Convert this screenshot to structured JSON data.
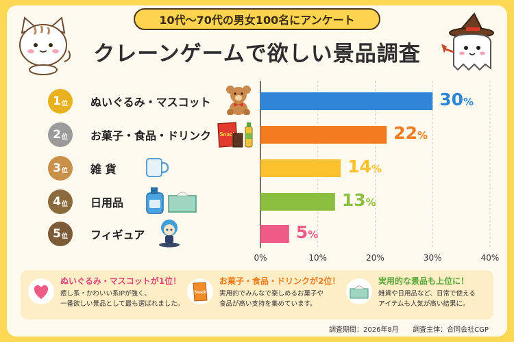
{
  "header": {
    "subtitle": "10代〜70代の男女100名にアンケート",
    "title": "クレーンゲームで欲しい景品調査"
  },
  "rank_suffix": "位",
  "percent_suffix": "%",
  "chart_data": {
    "type": "bar",
    "orientation": "horizontal",
    "categories": [
      "ぬいぐるみ・マスコット",
      "お菓子・食品・ドリンク",
      "雑 貨",
      "日用品",
      "フィギュア"
    ],
    "ranks": [
      "1",
      "2",
      "3",
      "4",
      "5"
    ],
    "values": [
      30,
      22,
      14,
      13,
      5
    ],
    "value_labels": [
      "30",
      "22",
      "14",
      "13",
      "5"
    ],
    "colors": [
      "#2f86d6",
      "#f27a1f",
      "#fbc22d",
      "#8cbf3f",
      "#ef5b87"
    ],
    "rank_colors": [
      "#e8b21e",
      "#9b9b9b",
      "#c89048",
      "#8b6a3e",
      "#7d5a38"
    ],
    "xlim": [
      0,
      40
    ],
    "xticks": [
      "0%",
      "10%",
      "20%",
      "30%",
      "40%"
    ],
    "grid": true,
    "icons": [
      "teddy-bear-icon",
      "snack-food-drink-icon",
      "mug-icon",
      "detergent-tissue-icon",
      "figure-icon"
    ],
    "snack_bag_text": "Snack"
  },
  "features": [
    {
      "title": "ぬいぐるみ・マスコットが1位！",
      "lines": [
        "癒し系・かわいい系IPが強く、",
        "一番欲しい景品として最も選ばれました。"
      ],
      "color": "#e0457a",
      "icon": "heart-icon"
    },
    {
      "title": "お菓子・食品・ドリンクが2位！",
      "lines": [
        "実用的でみんなで楽しめるお菓子や",
        "食品が高い支持を集めています。"
      ],
      "color": "#ef7a1a",
      "icon": "snack-bag-icon"
    },
    {
      "title": "実用的な景品も上位に！",
      "lines": [
        "雑貨や日用品など、日常で使える",
        "アイテムも人気が高い結果に。"
      ],
      "color": "#5aa83a",
      "icon": "tissue-box-icon"
    }
  ],
  "footer": {
    "period": "調査期間：2026年8月",
    "organizer": "調査主体：合同会社CGP"
  }
}
